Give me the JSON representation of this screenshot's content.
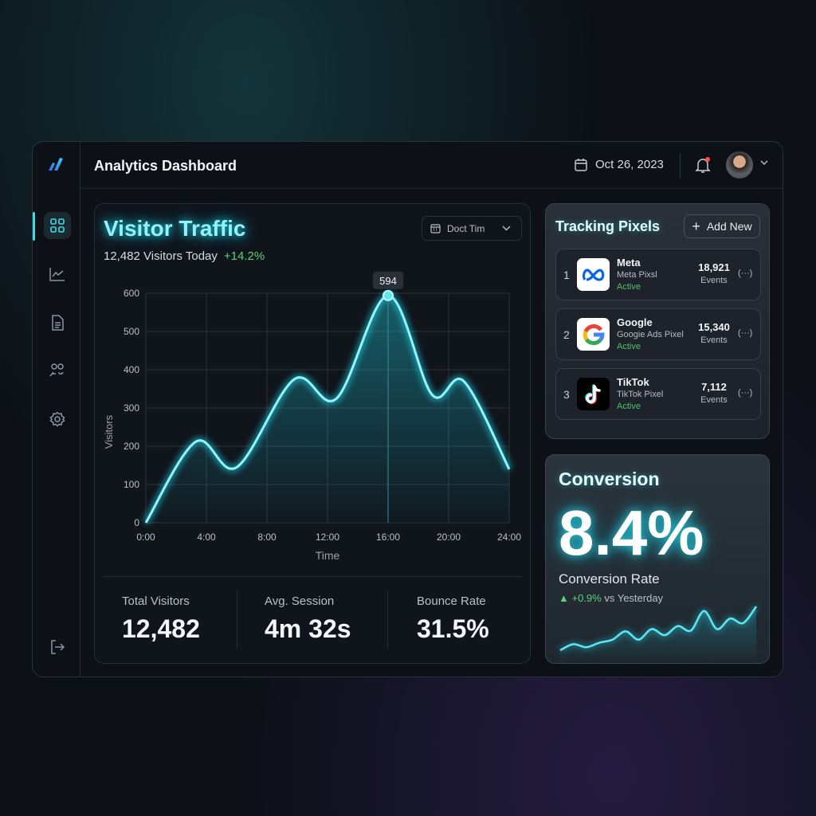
{
  "header": {
    "title": "Analytics Dashboard",
    "date": "Oct 26, 2023"
  },
  "sidebar": {
    "items": [
      "dashboard",
      "analytics",
      "reports",
      "audience",
      "settings"
    ],
    "logout": "logout"
  },
  "visitor_traffic": {
    "title": "Visitor Traffic",
    "visitors_today": "12,482 Visitors Today",
    "change": "+14.2%",
    "range_select": "Doct Tim",
    "tooltip": "594"
  },
  "stats": [
    {
      "label": "Total Visitors",
      "value": "12,482"
    },
    {
      "label": "Avg. Session",
      "value": "4m 32s"
    },
    {
      "label": "Bounce Rate",
      "value": "31.5%"
    }
  ],
  "tracking": {
    "title": "Tracking Pixels",
    "add_label": "Add New",
    "pixels": [
      {
        "rank": "1",
        "name": "Meta",
        "pixel": "Meta Pixsl",
        "status": "Active",
        "events": "18,921",
        "events_label": "Events",
        "more": "(···)"
      },
      {
        "rank": "2",
        "name": "Google",
        "pixel": "Googie Ads Pixel",
        "status": "Active",
        "events": "15,340",
        "events_label": "Events",
        "more": "(···)"
      },
      {
        "rank": "3",
        "name": "TikTok",
        "pixel": "TikTok Pixel",
        "status": "Active",
        "events": "7,112",
        "events_label": "Events",
        "more": "(···)"
      }
    ]
  },
  "conversion": {
    "title": "Conversion",
    "value": "8.4%",
    "label": "Conversion Rate",
    "change": "+0.9%",
    "change_suffix": "vs Yesterday"
  },
  "colors": {
    "accent": "#3fd9e6",
    "positive": "#5fd07a",
    "background": "#0d1117"
  },
  "chart_data": [
    {
      "type": "line",
      "title": "",
      "xlabel": "Time",
      "ylabel": "Visitors",
      "xticks": [
        "0:00",
        "4:00",
        "8:00",
        "12:00",
        "16:00",
        "20:00",
        "24:00"
      ],
      "yticks": [
        "0",
        "100",
        "200",
        "300",
        "400",
        "500",
        "600"
      ],
      "xlim": [
        0,
        24
      ],
      "ylim": [
        0,
        600
      ],
      "grid": true,
      "x": [
        0,
        3.3,
        6,
        9.8,
        12.6,
        16,
        18.9,
        21,
        24
      ],
      "y": [
        0,
        212,
        145,
        375,
        325,
        594,
        335,
        370,
        140
      ],
      "highlight": {
        "x": 16,
        "y": 594
      }
    },
    {
      "type": "line",
      "title": "",
      "y": [
        10,
        18,
        14,
        20,
        24,
        35,
        24,
        38,
        30,
        42,
        36,
        62,
        38,
        52,
        46,
        68
      ]
    }
  ]
}
